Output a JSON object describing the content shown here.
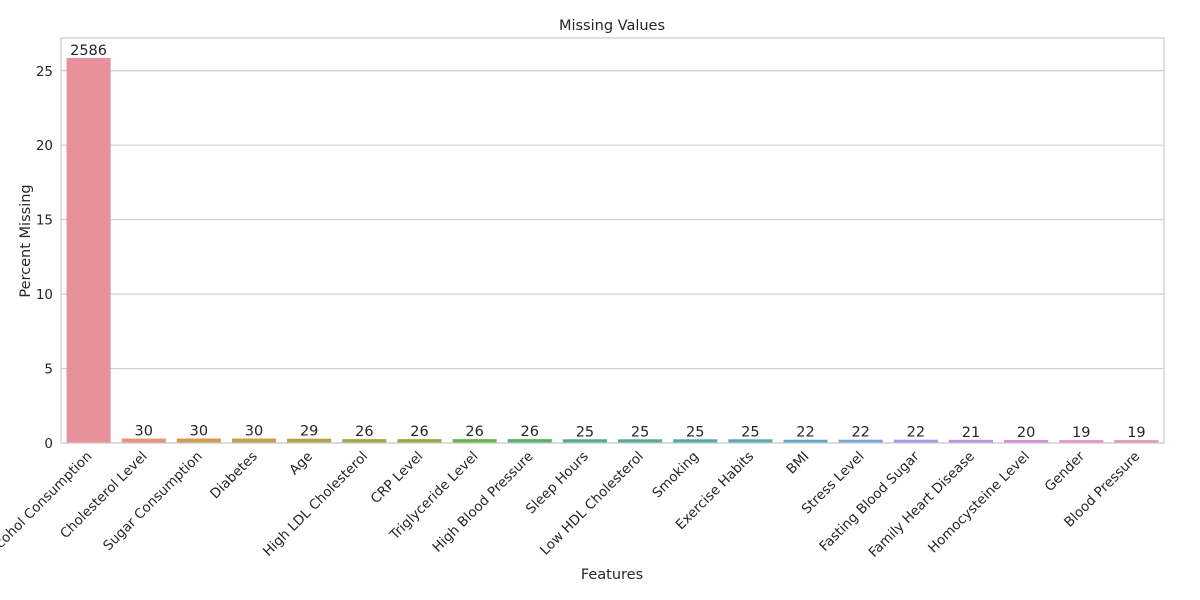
{
  "chart_data": {
    "type": "bar",
    "title": "Missing Values",
    "xlabel": "Features",
    "ylabel": "Percent Missing",
    "ylim": [
      0,
      27.2
    ],
    "yticks": [
      0,
      5,
      10,
      15,
      20,
      25
    ],
    "grid": true,
    "categories": [
      "Alcohol Consumption",
      "Cholesterol Level",
      "Sugar Consumption",
      "Diabetes",
      "Age",
      "High LDL Cholesterol",
      "CRP Level",
      "Triglyceride Level",
      "High Blood Pressure",
      "Sleep Hours",
      "Low HDL Cholesterol",
      "Smoking",
      "Exercise Habits",
      "BMI",
      "Stress Level",
      "Fasting Blood Sugar",
      "Family Heart Disease",
      "Homocysteine Level",
      "Gender",
      "Blood Pressure"
    ],
    "values": [
      25.86,
      0.3,
      0.3,
      0.3,
      0.29,
      0.26,
      0.26,
      0.26,
      0.26,
      0.25,
      0.25,
      0.25,
      0.25,
      0.22,
      0.22,
      0.22,
      0.21,
      0.2,
      0.19,
      0.19
    ],
    "data_labels": [
      "2586",
      "30",
      "30",
      "30",
      "29",
      "26",
      "26",
      "26",
      "26",
      "25",
      "25",
      "25",
      "25",
      "22",
      "22",
      "22",
      "21",
      "20",
      "19",
      "19"
    ],
    "colors": [
      "#e8909c",
      "#e79478",
      "#d59a52",
      "#c4a04a",
      "#b2a445",
      "#a1a844",
      "#8fac48",
      "#6fb04f",
      "#56b06e",
      "#52ae8a",
      "#51ad98",
      "#54aca6",
      "#57abb5",
      "#5da9c8",
      "#79a3dc",
      "#9e9ae6",
      "#bf8fe4",
      "#d98ad8",
      "#e68cc3",
      "#e88eae"
    ]
  }
}
